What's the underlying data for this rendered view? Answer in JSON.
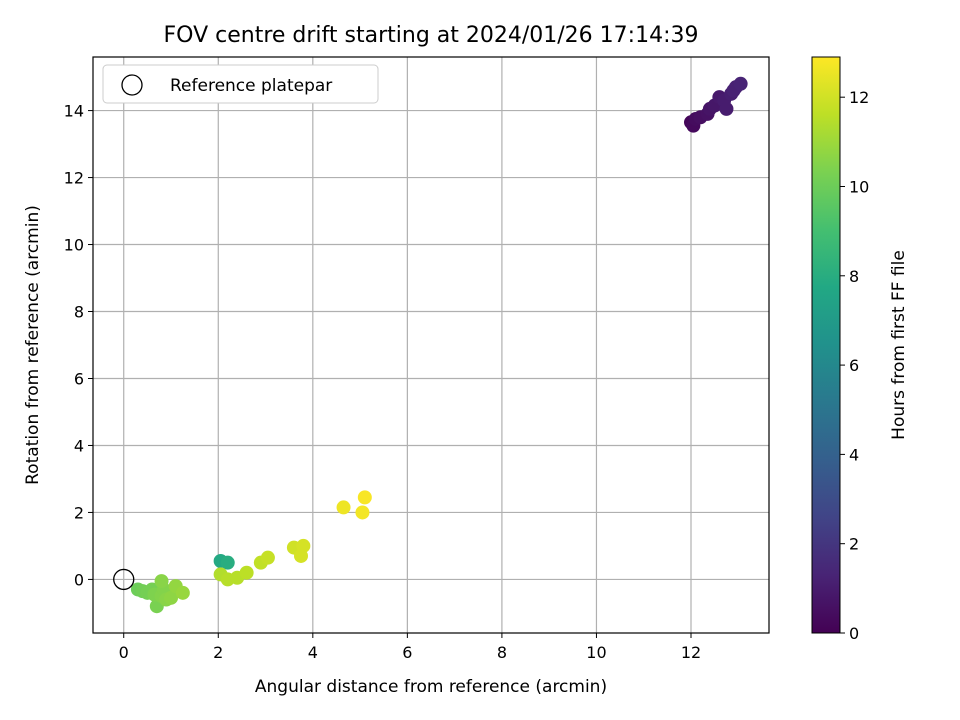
{
  "chart_data": {
    "type": "scatter",
    "title": "FOV centre drift starting at 2024/01/26 17:14:39",
    "xlabel": "Angular distance from reference (arcmin)",
    "ylabel": "Rotation from reference (arcmin)",
    "xlim": [
      -0.65,
      13.65
    ],
    "ylim": [
      -1.6,
      15.6
    ],
    "xticks": [
      0,
      2,
      4,
      6,
      8,
      10,
      12
    ],
    "yticks": [
      0,
      2,
      4,
      6,
      8,
      10,
      12,
      14
    ],
    "grid": true,
    "legend": {
      "position": "top-left",
      "entries": [
        "Reference platepar"
      ]
    },
    "reference_point": {
      "x": 0,
      "y": 0,
      "label": "Reference platepar"
    },
    "colorbar": {
      "label": "Hours from first FF file",
      "range": [
        0,
        12.9
      ],
      "ticks": [
        0,
        2,
        4,
        6,
        8,
        10,
        12
      ],
      "colormap": "viridis"
    },
    "points": [
      {
        "x": 12.0,
        "y": 13.65,
        "c": 0.2
      },
      {
        "x": 12.05,
        "y": 13.55,
        "c": 0.3
      },
      {
        "x": 12.1,
        "y": 13.75,
        "c": 0.4
      },
      {
        "x": 12.2,
        "y": 13.8,
        "c": 0.5
      },
      {
        "x": 12.35,
        "y": 13.9,
        "c": 0.6
      },
      {
        "x": 12.4,
        "y": 14.05,
        "c": 0.7
      },
      {
        "x": 12.5,
        "y": 14.15,
        "c": 0.8
      },
      {
        "x": 12.6,
        "y": 14.4,
        "c": 0.9
      },
      {
        "x": 12.7,
        "y": 14.3,
        "c": 1.0
      },
      {
        "x": 12.75,
        "y": 14.05,
        "c": 1.0
      },
      {
        "x": 12.85,
        "y": 14.5,
        "c": 1.1
      },
      {
        "x": 12.9,
        "y": 14.6,
        "c": 1.2
      },
      {
        "x": 12.95,
        "y": 14.7,
        "c": 1.2
      },
      {
        "x": 13.05,
        "y": 14.8,
        "c": 1.3
      },
      {
        "x": 2.05,
        "y": 0.55,
        "c": 7.8
      },
      {
        "x": 2.2,
        "y": 0.5,
        "c": 8.0
      },
      {
        "x": 0.3,
        "y": -0.3,
        "c": 10.0
      },
      {
        "x": 0.4,
        "y": -0.35,
        "c": 10.1
      },
      {
        "x": 0.5,
        "y": -0.4,
        "c": 10.2
      },
      {
        "x": 0.6,
        "y": -0.3,
        "c": 10.2
      },
      {
        "x": 0.7,
        "y": -0.8,
        "c": 10.3
      },
      {
        "x": 0.65,
        "y": -0.45,
        "c": 10.4
      },
      {
        "x": 0.8,
        "y": -0.5,
        "c": 10.5
      },
      {
        "x": 0.85,
        "y": -0.3,
        "c": 10.5
      },
      {
        "x": 0.9,
        "y": -0.6,
        "c": 10.6
      },
      {
        "x": 0.8,
        "y": -0.05,
        "c": 10.6
      },
      {
        "x": 1.0,
        "y": -0.55,
        "c": 10.7
      },
      {
        "x": 1.1,
        "y": -0.2,
        "c": 10.8
      },
      {
        "x": 1.25,
        "y": -0.4,
        "c": 10.9
      },
      {
        "x": 2.05,
        "y": 0.15,
        "c": 11.4
      },
      {
        "x": 2.2,
        "y": 0.0,
        "c": 11.5
      },
      {
        "x": 2.4,
        "y": 0.05,
        "c": 11.5
      },
      {
        "x": 2.6,
        "y": 0.2,
        "c": 11.6
      },
      {
        "x": 2.9,
        "y": 0.5,
        "c": 11.7
      },
      {
        "x": 3.05,
        "y": 0.65,
        "c": 11.8
      },
      {
        "x": 3.6,
        "y": 0.95,
        "c": 12.0
      },
      {
        "x": 3.7,
        "y": 0.9,
        "c": 12.0
      },
      {
        "x": 3.75,
        "y": 0.7,
        "c": 12.1
      },
      {
        "x": 3.8,
        "y": 1.0,
        "c": 12.1
      },
      {
        "x": 4.65,
        "y": 2.15,
        "c": 12.6
      },
      {
        "x": 5.05,
        "y": 2.0,
        "c": 12.7
      },
      {
        "x": 5.1,
        "y": 2.45,
        "c": 12.8
      }
    ]
  }
}
